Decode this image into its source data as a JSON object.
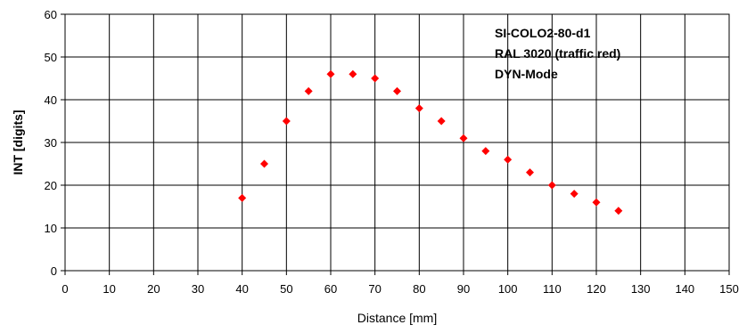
{
  "chart_data": {
    "type": "scatter",
    "xlabel": "Distance [mm]",
    "ylabel": "INT [digits]",
    "xlim": [
      0,
      150
    ],
    "ylim": [
      0,
      60
    ],
    "xticks": [
      "0",
      "10",
      "20",
      "30",
      "40",
      "50",
      "60",
      "70",
      "80",
      "90",
      "100",
      "110",
      "120",
      "130",
      "140",
      "150"
    ],
    "yticks": [
      "0",
      "10",
      "20",
      "30",
      "40",
      "50",
      "60"
    ],
    "grid": true,
    "marker": "diamond",
    "marker_color": "#ff0000",
    "annotations": [
      "SI-COLO2-80-d1",
      "RAL 3020 (traffic red)",
      "DYN-Mode"
    ],
    "series": [
      {
        "x": [
          40,
          45,
          50,
          55,
          60,
          65,
          70,
          75,
          80,
          85,
          90,
          95,
          100,
          105,
          110,
          115,
          120,
          125
        ],
        "y": [
          17,
          25,
          35,
          42,
          46,
          46,
          45,
          42,
          38,
          35,
          31,
          28,
          26,
          23,
          20,
          18,
          16,
          14
        ]
      }
    ]
  }
}
